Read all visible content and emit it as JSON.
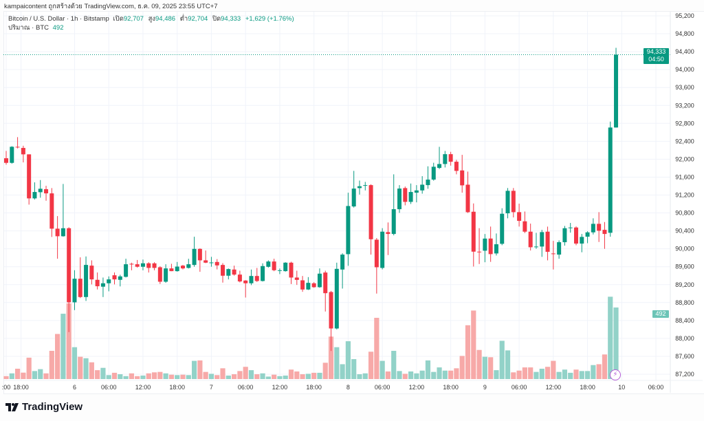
{
  "attribution": "kampaicontent ถูกสร้างด้วย TradingView.com, ธ.ค. 09, 2025 23:55 UTC+7",
  "legend": {
    "symbol": "Bitcoin / U.S. Dollar · 1h · Bitstamp",
    "open_label": "เปิด",
    "open": "92,707",
    "high_label": "สูง",
    "high": "94,486",
    "low_label": "ต่ำ",
    "low": "92,704",
    "close_label": "ปิด",
    "close": "94,333",
    "change": "+1,629 (+1.76%)",
    "volume_label": "ปริมาณ · BTC",
    "volume": "492"
  },
  "price_tag": {
    "price": "94,333",
    "countdown": "04:50"
  },
  "volume_tag": "492",
  "logo": "TradingView",
  "colors": {
    "up": "#089981",
    "down": "#f23645",
    "up_volume": "#92d2c8",
    "down_volume": "#f7a9a8",
    "grid": "#f0f3fa"
  },
  "chart_data": {
    "type": "candlestick",
    "interval": "1h",
    "ylim": [
      87200,
      95200
    ],
    "y_ticks": [
      "95,200",
      "94,800",
      "94,400",
      "94,000",
      "93,600",
      "93,200",
      "92,800",
      "92,400",
      "92,000",
      "91,600",
      "91,200",
      "90,800",
      "90,400",
      "90,000",
      "89,600",
      "89,200",
      "88,800",
      "88,400",
      "88,000",
      "87,600",
      "87,200"
    ],
    "x_ticks": [
      {
        "label": ":00",
        "index": 0
      },
      {
        "label": "18:00",
        "index": 2.6
      },
      {
        "label": "6",
        "index": 12
      },
      {
        "label": "06:00",
        "index": 18
      },
      {
        "label": "12:00",
        "index": 24
      },
      {
        "label": "18:00",
        "index": 30
      },
      {
        "label": "7",
        "index": 36
      },
      {
        "label": "06:00",
        "index": 42
      },
      {
        "label": "12:00",
        "index": 48
      },
      {
        "label": "18:00",
        "index": 54
      },
      {
        "label": "8",
        "index": 60
      },
      {
        "label": "06:00",
        "index": 66
      },
      {
        "label": "12:00",
        "index": 72
      },
      {
        "label": "18:00",
        "index": 78
      },
      {
        "label": "9",
        "index": 84
      },
      {
        "label": "06:00",
        "index": 90
      },
      {
        "label": "12:00",
        "index": 96
      },
      {
        "label": "18:00",
        "index": 102
      },
      {
        "label": "10",
        "index": 108
      },
      {
        "label": "06:00",
        "index": 114
      }
    ],
    "last_price": 94333,
    "candles_ohlcv": [
      [
        92021,
        92184,
        91877,
        91918,
        20
      ],
      [
        91918,
        92290,
        91900,
        92277,
        39
      ],
      [
        92277,
        92492,
        92240,
        92266,
        71
      ],
      [
        92251,
        92300,
        91928,
        92108,
        44
      ],
      [
        92108,
        92108,
        90986,
        91125,
        147
      ],
      [
        91125,
        91483,
        91099,
        91268,
        55
      ],
      [
        91263,
        91534,
        91140,
        91340,
        68
      ],
      [
        91330,
        91406,
        91073,
        91237,
        39
      ],
      [
        91237,
        91355,
        90264,
        90449,
        194
      ],
      [
        90449,
        90730,
        89778,
        90280,
        310
      ],
      [
        90280,
        91447,
        90270,
        90459,
        449
      ],
      [
        90459,
        90480,
        88140,
        88805,
        520
      ],
      [
        88805,
        89522,
        88631,
        89332,
        219
      ],
      [
        89332,
        89809,
        88900,
        88923,
        153
      ],
      [
        88923,
        89829,
        88836,
        89640,
        143
      ],
      [
        89624,
        89742,
        89205,
        89317,
        115
      ],
      [
        89307,
        89471,
        89092,
        89164,
        61
      ],
      [
        89154,
        89358,
        88923,
        89230,
        77
      ],
      [
        89230,
        89384,
        89051,
        89317,
        27
      ],
      [
        89409,
        89471,
        89205,
        89317,
        43
      ],
      [
        89307,
        89420,
        89160,
        89384,
        33
      ],
      [
        89374,
        89778,
        89360,
        89655,
        20
      ],
      [
        89665,
        89690,
        89520,
        89660,
        39
      ],
      [
        89655,
        89750,
        89580,
        89599,
        20
      ],
      [
        89599,
        89760,
        89520,
        89676,
        24
      ],
      [
        89676,
        89700,
        89470,
        89573,
        39
      ],
      [
        89675,
        89700,
        89520,
        89573,
        46
      ],
      [
        89588,
        89610,
        89215,
        89265,
        49
      ],
      [
        89265,
        89655,
        89240,
        89562,
        39
      ],
      [
        89562,
        89665,
        89500,
        89501,
        30
      ],
      [
        89501,
        89706,
        89490,
        89603,
        27
      ],
      [
        89624,
        89640,
        89540,
        89562,
        30
      ],
      [
        89573,
        89777,
        89560,
        89655,
        27
      ],
      [
        89639,
        90269,
        89600,
        89998,
        125
      ],
      [
        89998,
        90010,
        89486,
        89742,
        128
      ],
      [
        89742,
        89962,
        89680,
        89690,
        49
      ],
      [
        89690,
        89820,
        89600,
        89695,
        36
      ],
      [
        89706,
        89770,
        89540,
        89629,
        27
      ],
      [
        89639,
        89680,
        89245,
        89399,
        74
      ],
      [
        89399,
        89560,
        89317,
        89547,
        24
      ],
      [
        89537,
        89624,
        89400,
        89424,
        33
      ],
      [
        89424,
        89511,
        89250,
        89271,
        55
      ],
      [
        89291,
        89300,
        88912,
        89230,
        84
      ],
      [
        89230,
        89537,
        89190,
        89393,
        61
      ],
      [
        89393,
        89572,
        89260,
        89281,
        33
      ],
      [
        89281,
        89675,
        89270,
        89614,
        39
      ],
      [
        89598,
        89742,
        89580,
        89716,
        17
      ],
      [
        89716,
        89778,
        89500,
        89521,
        30
      ],
      [
        89521,
        89560,
        89435,
        89521,
        20
      ],
      [
        89501,
        89700,
        89490,
        89690,
        24
      ],
      [
        89690,
        89710,
        89214,
        89358,
        65
      ],
      [
        89358,
        89511,
        89194,
        89306,
        52
      ],
      [
        89296,
        89393,
        89040,
        89091,
        33
      ],
      [
        89091,
        89368,
        89080,
        89240,
        36
      ],
      [
        89230,
        89255,
        89130,
        89143,
        43
      ],
      [
        89143,
        89562,
        89130,
        89445,
        43
      ],
      [
        89470,
        89511,
        88600,
        89009,
        112
      ],
      [
        89035,
        89060,
        87719,
        88221,
        292
      ],
      [
        88221,
        89690,
        88200,
        89552,
        219
      ],
      [
        89537,
        89900,
        89112,
        89870,
        102
      ],
      [
        89880,
        91252,
        89620,
        90955,
        260
      ],
      [
        90945,
        91739,
        90920,
        91344,
        137
      ],
      [
        91355,
        91523,
        91210,
        91396,
        33
      ],
      [
        91421,
        91493,
        91303,
        91421,
        39
      ],
      [
        91421,
        91440,
        89870,
        90213,
        188
      ],
      [
        90203,
        90240,
        89000,
        89588,
        421
      ],
      [
        89573,
        90460,
        89540,
        90382,
        125
      ],
      [
        90372,
        90588,
        89860,
        90331,
        52
      ],
      [
        90331,
        91662,
        90300,
        90884,
        194
      ],
      [
        90884,
        91421,
        90802,
        91344,
        55
      ],
      [
        91355,
        91390,
        90970,
        91047,
        36
      ],
      [
        91047,
        91457,
        91000,
        91268,
        52
      ],
      [
        91252,
        91421,
        91037,
        91303,
        39
      ],
      [
        91303,
        91621,
        91230,
        91431,
        58
      ],
      [
        91421,
        91841,
        91340,
        91544,
        128
      ],
      [
        91544,
        91920,
        91520,
        91831,
        49
      ],
      [
        91805,
        92276,
        91780,
        91892,
        80
      ],
      [
        91892,
        92184,
        91815,
        92112,
        58
      ],
      [
        92112,
        92164,
        91856,
        91943,
        58
      ],
      [
        91943,
        91985,
        91662,
        91739,
        74
      ],
      [
        91749,
        92097,
        91252,
        91416,
        159
      ],
      [
        91431,
        91723,
        90800,
        90817,
        370
      ],
      [
        90827,
        91012,
        89604,
        89936,
        471
      ],
      [
        89936,
        90460,
        89660,
        89930,
        200
      ],
      [
        89957,
        90330,
        89700,
        90228,
        153
      ],
      [
        90229,
        90496,
        89708,
        89881,
        150
      ],
      [
        89896,
        90342,
        89850,
        90101,
        61
      ],
      [
        90111,
        90905,
        90080,
        90782,
        263
      ],
      [
        90792,
        91356,
        90680,
        91294,
        197
      ],
      [
        91294,
        91356,
        90700,
        90818,
        46
      ],
      [
        90818,
        91007,
        90496,
        90623,
        58
      ],
      [
        90613,
        90832,
        90350,
        90382,
        80
      ],
      [
        90382,
        90562,
        89962,
        90034,
        80
      ],
      [
        90050,
        90357,
        90000,
        90050,
        49
      ],
      [
        90050,
        90423,
        89820,
        90372,
        71
      ],
      [
        90382,
        90495,
        89742,
        89932,
        84
      ],
      [
        89896,
        90177,
        89538,
        89881,
        125
      ],
      [
        89870,
        90188,
        89778,
        90147,
        49
      ],
      [
        90147,
        90510,
        90070,
        90459,
        65
      ],
      [
        90475,
        90577,
        90360,
        90475,
        43
      ],
      [
        90475,
        90500,
        90080,
        90116,
        65
      ],
      [
        90116,
        90331,
        89922,
        90265,
        55
      ],
      [
        90270,
        90392,
        90125,
        90367,
        55
      ],
      [
        90367,
        90680,
        90320,
        90557,
        96
      ],
      [
        90557,
        90818,
        90152,
        90403,
        102
      ],
      [
        90423,
        90597,
        89999,
        90331,
        169
      ],
      [
        90357,
        92840,
        90270,
        92707,
        566
      ],
      [
        92707,
        94486,
        92704,
        94333,
        492
      ]
    ]
  }
}
